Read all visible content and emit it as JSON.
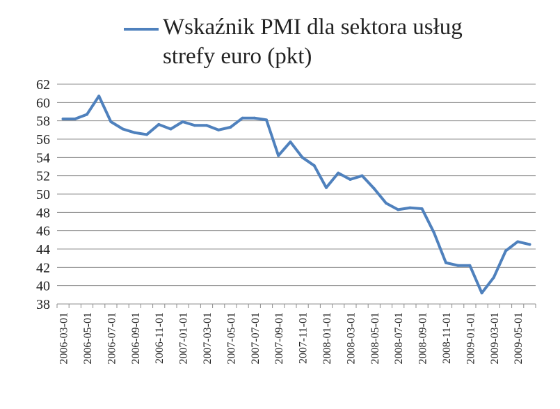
{
  "chart_data": {
    "type": "line",
    "title": "",
    "xlabel": "",
    "ylabel": "",
    "ylim": [
      38,
      62
    ],
    "yticks": [
      38,
      40,
      42,
      44,
      46,
      48,
      50,
      52,
      54,
      56,
      58,
      60,
      62
    ],
    "grid": true,
    "legend_position": "top",
    "x": [
      "2006-03-01",
      "2006-04-01",
      "2006-05-01",
      "2006-06-01",
      "2006-07-01",
      "2006-08-01",
      "2006-09-01",
      "2006-10-01",
      "2006-11-01",
      "2006-12-01",
      "2007-01-01",
      "2007-02-01",
      "2007-03-01",
      "2007-04-01",
      "2007-05-01",
      "2007-06-01",
      "2007-07-01",
      "2007-08-01",
      "2007-09-01",
      "2007-10-01",
      "2007-11-01",
      "2007-12-01",
      "2008-01-01",
      "2008-02-01",
      "2008-03-01",
      "2008-04-01",
      "2008-05-01",
      "2008-06-01",
      "2008-07-01",
      "2008-08-01",
      "2008-09-01",
      "2008-10-01",
      "2008-11-01",
      "2008-12-01",
      "2009-01-01",
      "2009-02-01",
      "2009-03-01",
      "2009-04-01",
      "2009-05-01",
      "2009-06-01"
    ],
    "x_tick_labels": [
      "2006-03-01",
      "2006-05-01",
      "2006-07-01",
      "2006-09-01",
      "2006-11-01",
      "2007-01-01",
      "2007-03-01",
      "2007-05-01",
      "2007-07-01",
      "2007-09-01",
      "2007-11-01",
      "2008-01-01",
      "2008-03-01",
      "2008-05-01",
      "2008-07-01",
      "2008-09-01",
      "2008-11-01",
      "2009-01-01",
      "2009-03-01",
      "2009-05-01"
    ],
    "series": [
      {
        "name": "Wskaźnik PMI dla sektora usług strefy euro (pkt)",
        "color": "#4f81bd",
        "values": [
          58.2,
          58.2,
          58.7,
          60.7,
          57.9,
          57.1,
          56.7,
          56.5,
          57.6,
          57.1,
          57.9,
          57.5,
          57.5,
          57.0,
          57.3,
          58.3,
          58.3,
          58.1,
          54.2,
          55.7,
          54.0,
          53.1,
          50.7,
          52.3,
          51.6,
          52.0,
          50.6,
          49.0,
          48.3,
          48.5,
          48.4,
          45.8,
          42.5,
          42.2,
          42.2,
          39.2,
          40.9,
          43.8,
          44.8,
          44.5
        ]
      }
    ]
  }
}
